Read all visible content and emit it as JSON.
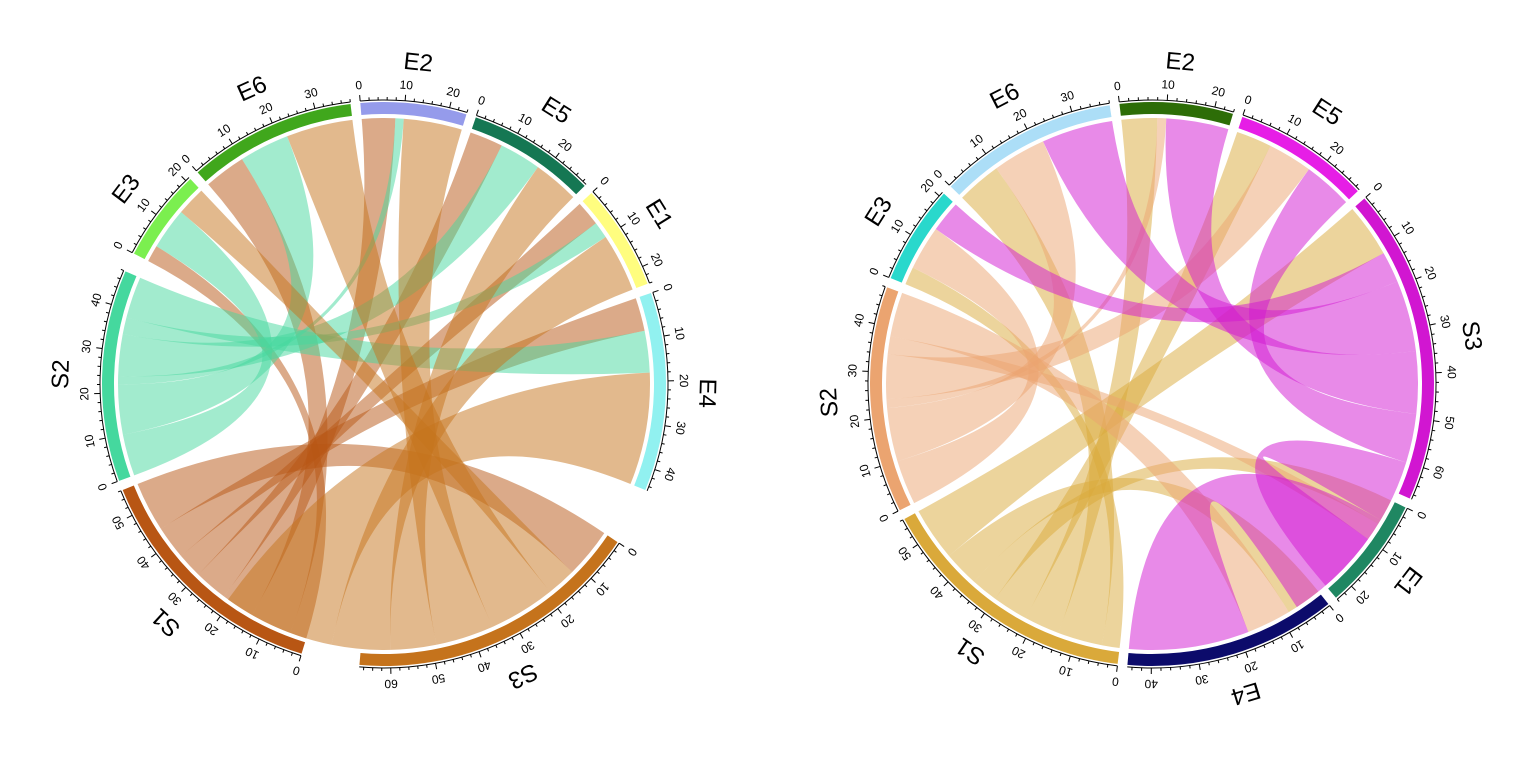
{
  "chart_data": [
    {
      "type": "chord",
      "title": "",
      "sectors": [
        {
          "name": "S1",
          "length": 56,
          "color": "#B85614"
        },
        {
          "name": "S2",
          "length": 48,
          "color": "#45D89E"
        },
        {
          "name": "E3",
          "length": 21,
          "color": "#7BEF4F"
        },
        {
          "name": "E6",
          "length": 38,
          "color": "#40A71C"
        },
        {
          "name": "E2",
          "length": 24,
          "color": "#959BEB"
        },
        {
          "name": "E5",
          "length": 29,
          "color": "#157753"
        },
        {
          "name": "E1",
          "length": 24,
          "color": "#FFFD7F"
        },
        {
          "name": "E4",
          "length": 45,
          "color": "#91F1F0"
        },
        {
          "name": "S3",
          "length": 67,
          "color": "#C5731C"
        }
      ],
      "links": [
        {
          "from": "S1",
          "to": "E3",
          "value": 4
        },
        {
          "from": "S1",
          "to": "E6",
          "value": 10
        },
        {
          "from": "S1",
          "to": "E2",
          "value": 8
        },
        {
          "from": "S1",
          "to": "E5",
          "value": 8
        },
        {
          "from": "S1",
          "to": "E1",
          "value": 6
        },
        {
          "from": "S1",
          "to": "E4",
          "value": 8
        },
        {
          "from": "S1",
          "to": "S3",
          "value": 12
        },
        {
          "from": "S2",
          "to": "E3",
          "value": 10
        },
        {
          "from": "S2",
          "to": "E6",
          "value": 12
        },
        {
          "from": "S2",
          "to": "E2",
          "value": 2
        },
        {
          "from": "S2",
          "to": "E5",
          "value": 10
        },
        {
          "from": "S2",
          "to": "E1",
          "value": 4
        },
        {
          "from": "S2",
          "to": "E4",
          "value": 10
        },
        {
          "from": "S3",
          "to": "E3",
          "value": 7
        },
        {
          "from": "S3",
          "to": "E6",
          "value": 16
        },
        {
          "from": "S3",
          "to": "E2",
          "value": 14
        },
        {
          "from": "S3",
          "to": "E5",
          "value": 11
        },
        {
          "from": "S3",
          "to": "E1",
          "value": 14
        },
        {
          "from": "S3",
          "to": "E4",
          "value": 27
        }
      ]
    },
    {
      "type": "chord",
      "title": "",
      "sectors": [
        {
          "name": "S1",
          "length": 56,
          "color": "#DAA93A"
        },
        {
          "name": "S2",
          "length": 48,
          "color": "#EBA470"
        },
        {
          "name": "E3",
          "length": 21,
          "color": "#29D8CC"
        },
        {
          "name": "E6",
          "length": 38,
          "color": "#ACDEF7"
        },
        {
          "name": "E2",
          "length": 24,
          "color": "#2D6D07"
        },
        {
          "name": "E5",
          "length": 29,
          "color": "#E61EE6"
        },
        {
          "name": "S3",
          "length": 67,
          "color": "#D116D1"
        },
        {
          "name": "E1",
          "length": 24,
          "color": "#1F8762"
        },
        {
          "name": "E4",
          "length": 45,
          "color": "#0C0B6B"
        }
      ],
      "links": [
        {
          "from": "S1",
          "to": "E3",
          "value": 4
        },
        {
          "from": "S1",
          "to": "E6",
          "value": 10
        },
        {
          "from": "S1",
          "to": "E2",
          "value": 8
        },
        {
          "from": "S1",
          "to": "E5",
          "value": 8
        },
        {
          "from": "S1",
          "to": "E1",
          "value": 6
        },
        {
          "from": "S1",
          "to": "E4",
          "value": 8
        },
        {
          "from": "S1",
          "to": "S3",
          "value": 12
        },
        {
          "from": "S2",
          "to": "E3",
          "value": 10
        },
        {
          "from": "S2",
          "to": "E6",
          "value": 12
        },
        {
          "from": "S2",
          "to": "E2",
          "value": 2
        },
        {
          "from": "S2",
          "to": "E5",
          "value": 10
        },
        {
          "from": "S2",
          "to": "E1",
          "value": 4
        },
        {
          "from": "S2",
          "to": "E4",
          "value": 10
        },
        {
          "from": "S3",
          "to": "E3",
          "value": 7
        },
        {
          "from": "S3",
          "to": "E6",
          "value": 16
        },
        {
          "from": "S3",
          "to": "E2",
          "value": 14
        },
        {
          "from": "S3",
          "to": "E5",
          "value": 11
        },
        {
          "from": "S3",
          "to": "E1",
          "value": 14
        },
        {
          "from": "S3",
          "to": "E4",
          "value": 27
        }
      ]
    }
  ]
}
